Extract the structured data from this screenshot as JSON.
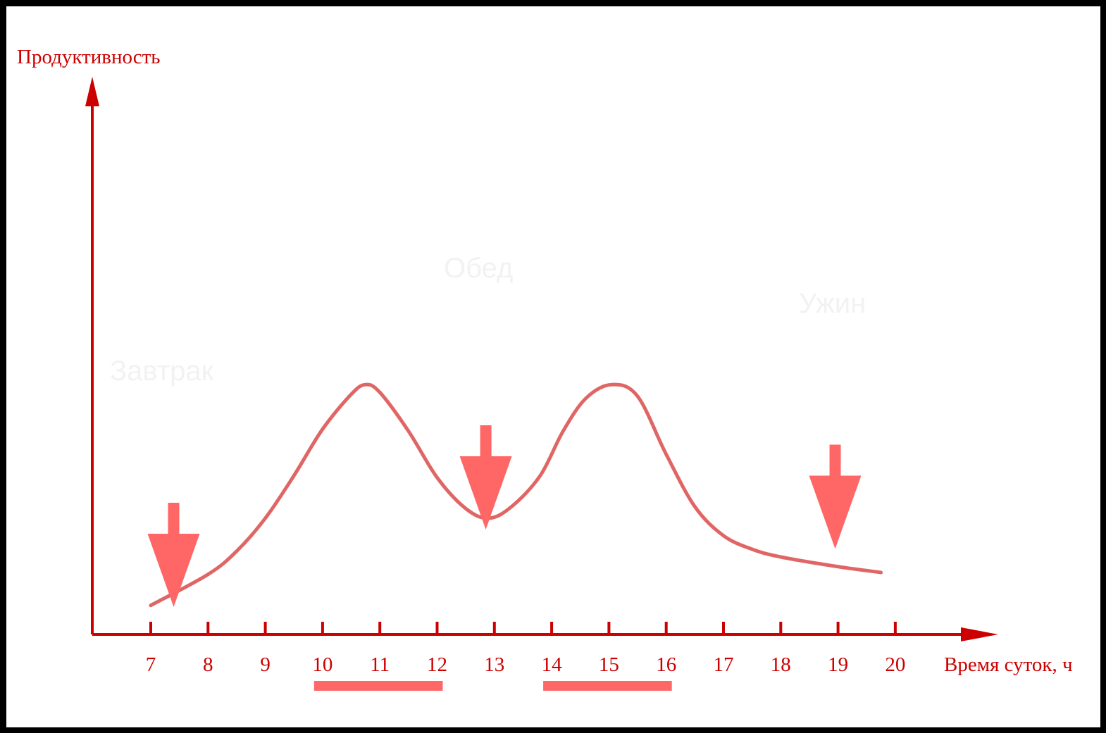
{
  "chart_data": {
    "type": "line",
    "ylabel": "Продуктивность",
    "xlabel": "Время суток, ч",
    "x_ticks": [
      7,
      8,
      9,
      10,
      11,
      12,
      13,
      14,
      15,
      16,
      17,
      18,
      19,
      20
    ],
    "series": [
      {
        "x": [
          7.0,
          8.0,
          8.5,
          9.0,
          9.5,
          10.0,
          10.5,
          10.75,
          11.0,
          11.5,
          12.0,
          12.5,
          12.9,
          13.3,
          13.8,
          14.2,
          14.6,
          15.05,
          15.5,
          16.0,
          16.5,
          17.0,
          17.5,
          18.0,
          19.0,
          19.75
        ],
        "y": [
          1.5,
          3.1,
          4.3,
          6.0,
          8.2,
          10.6,
          12.4,
          12.9,
          12.5,
          10.5,
          8.1,
          6.5,
          6.0,
          6.6,
          8.2,
          10.5,
          12.2,
          12.9,
          12.3,
          9.3,
          6.6,
          5.1,
          4.4,
          4.0,
          3.5,
          3.2
        ]
      }
    ],
    "xlim": [
      6,
      21.3
    ],
    "ylim": [
      0,
      21
    ],
    "line_color": "#e06666",
    "axis_color": "#cc0000",
    "highlight_ranges": [
      [
        10,
        12
      ],
      [
        14,
        16
      ]
    ],
    "highlight_color": "#ff6666",
    "meal_arrows": [
      {
        "x": 7.4,
        "y": 6.8,
        "label": "Завтрак"
      },
      {
        "x": 12.85,
        "y": 10.8,
        "label": "Обед"
      },
      {
        "x": 18.95,
        "y": 9.8,
        "label": "Ужин"
      }
    ],
    "arrow_color": "#ff6666"
  }
}
